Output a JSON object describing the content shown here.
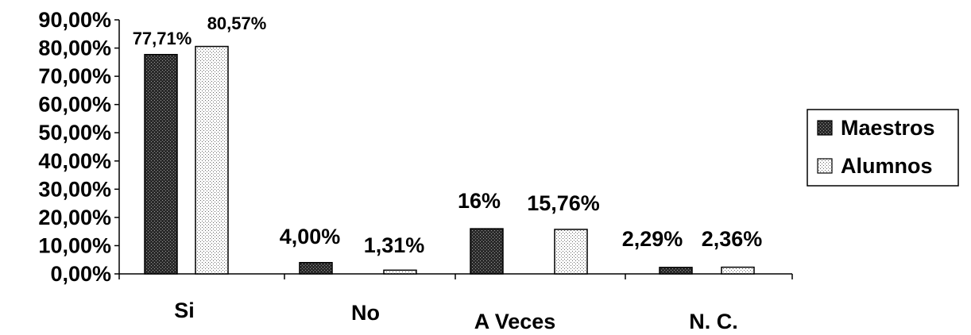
{
  "chart_data": {
    "type": "bar",
    "categories": [
      "Si",
      "No",
      "A Veces",
      "N. C."
    ],
    "series": [
      {
        "name": "Maestros",
        "values": [
          77.71,
          4.0,
          16.0,
          2.29
        ],
        "labels": [
          "77,71%",
          "4,00%",
          "16%",
          "2,29%"
        ],
        "color": "#222222",
        "pattern": "dark-checker"
      },
      {
        "name": "Alumnos",
        "values": [
          80.57,
          1.31,
          15.76,
          2.36
        ],
        "labels": [
          "80,57%",
          "1,31%",
          "15,76%",
          "2,36%"
        ],
        "color": "#ffffff",
        "pattern": "light-dots"
      }
    ],
    "y_ticks": [
      "0,00%",
      "10,00%",
      "20,00%",
      "30,00%",
      "40,00%",
      "50,00%",
      "60,00%",
      "70,00%",
      "80,00%",
      "90,00%"
    ],
    "ylim": [
      0,
      90
    ],
    "title": "",
    "xlabel": "",
    "ylabel": "",
    "legend_position": "right",
    "grid": false
  }
}
